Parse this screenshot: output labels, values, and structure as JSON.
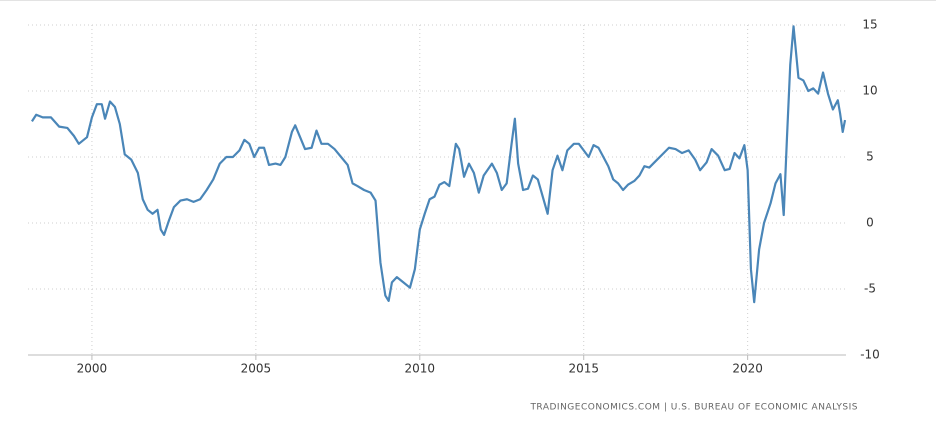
{
  "chart_data": {
    "type": "line",
    "source": "TRADINGECONOMICS.COM | U.S. BUREAU OF ECONOMIC ANALYSIS",
    "xlim": [
      1998.05,
      2023.0
    ],
    "ylim": [
      -10,
      15
    ],
    "xticks": [
      2000,
      2005,
      2010,
      2015,
      2020
    ],
    "yticks": [
      -10,
      -5,
      0,
      5,
      10,
      15
    ],
    "grid": true,
    "series": [
      {
        "color": "#4a86b8",
        "x": [
          1998.17,
          1998.3,
          1998.5,
          1998.75,
          1999.0,
          1999.25,
          1999.45,
          1999.6,
          1999.85,
          2000.0,
          2000.15,
          2000.3,
          2000.4,
          2000.55,
          2000.7,
          2000.85,
          2001.0,
          2001.2,
          2001.4,
          2001.55,
          2001.7,
          2001.85,
          2002.0,
          2002.1,
          2002.2,
          2002.35,
          2002.5,
          2002.7,
          2002.9,
          2003.1,
          2003.3,
          2003.5,
          2003.7,
          2003.9,
          2004.1,
          2004.3,
          2004.5,
          2004.65,
          2004.8,
          2004.95,
          2005.1,
          2005.25,
          2005.4,
          2005.6,
          2005.75,
          2005.9,
          2006.1,
          2006.2,
          2006.35,
          2006.5,
          2006.7,
          2006.85,
          2007.0,
          2007.2,
          2007.4,
          2007.6,
          2007.8,
          2007.95,
          2008.1,
          2008.3,
          2008.5,
          2008.65,
          2008.8,
          2008.95,
          2009.05,
          2009.15,
          2009.3,
          2009.5,
          2009.7,
          2009.85,
          2010.0,
          2010.15,
          2010.3,
          2010.45,
          2010.6,
          2010.75,
          2010.9,
          2011.1,
          2011.2,
          2011.35,
          2011.5,
          2011.65,
          2011.8,
          2011.95,
          2012.2,
          2012.35,
          2012.5,
          2012.65,
          2012.8,
          2012.9,
          2013.0,
          2013.15,
          2013.3,
          2013.45,
          2013.6,
          2013.75,
          2013.9,
          2014.05,
          2014.2,
          2014.35,
          2014.5,
          2014.7,
          2014.85,
          2015.0,
          2015.15,
          2015.3,
          2015.45,
          2015.6,
          2015.75,
          2015.9,
          2016.05,
          2016.2,
          2016.35,
          2016.55,
          2016.7,
          2016.85,
          2017.0,
          2017.2,
          2017.4,
          2017.6,
          2017.8,
          2018.0,
          2018.2,
          2018.4,
          2018.55,
          2018.75,
          2018.9,
          2019.1,
          2019.3,
          2019.45,
          2019.6,
          2019.75,
          2019.9,
          2020.0,
          2020.1,
          2020.2,
          2020.35,
          2020.5,
          2020.7,
          2020.85,
          2021.0,
          2021.1,
          2021.2,
          2021.3,
          2021.4,
          2021.55,
          2021.7,
          2021.85,
          2022.0,
          2022.15,
          2022.3,
          2022.45,
          2022.6,
          2022.75,
          2022.82,
          2022.9,
          2022.97
        ],
        "values": [
          7.7,
          8.2,
          8.0,
          8.0,
          7.3,
          7.2,
          6.6,
          6.0,
          6.5,
          8.0,
          9.0,
          9.0,
          7.9,
          9.2,
          8.8,
          7.5,
          5.2,
          4.8,
          3.8,
          1.8,
          1.0,
          0.7,
          1.0,
          -0.5,
          -0.9,
          0.2,
          1.2,
          1.7,
          1.8,
          1.6,
          1.8,
          2.5,
          3.3,
          4.5,
          5.0,
          5.0,
          5.5,
          6.3,
          6.0,
          5.0,
          5.7,
          5.7,
          4.4,
          4.5,
          4.4,
          5.0,
          6.9,
          7.4,
          6.5,
          5.6,
          5.7,
          7.0,
          6.0,
          6.0,
          5.6,
          5.0,
          4.4,
          3.0,
          2.8,
          2.5,
          2.3,
          1.7,
          -3.0,
          -5.5,
          -5.9,
          -4.5,
          -4.1,
          -4.5,
          -4.9,
          -3.5,
          -0.5,
          0.7,
          1.8,
          2.0,
          2.9,
          3.1,
          2.8,
          6.0,
          5.6,
          3.5,
          4.5,
          3.8,
          2.3,
          3.6,
          4.5,
          3.8,
          2.5,
          3.0,
          6.0,
          7.9,
          4.5,
          2.5,
          2.6,
          3.6,
          3.3,
          2.0,
          0.7,
          4.0,
          5.1,
          4.0,
          5.5,
          6.0,
          6.0,
          5.5,
          5.0,
          5.9,
          5.7,
          5.0,
          4.3,
          3.3,
          3.0,
          2.5,
          2.9,
          3.2,
          3.6,
          4.3,
          4.2,
          4.7,
          5.2,
          5.7,
          5.6,
          5.3,
          5.5,
          4.8,
          4.0,
          4.6,
          5.6,
          5.1,
          4.0,
          4.1,
          5.3,
          4.9,
          5.9,
          4.0,
          -3.5,
          -6.0,
          -2.0,
          0.0,
          1.5,
          3.0,
          3.7,
          0.6,
          6.5,
          12.0,
          14.9,
          11.0,
          10.8,
          10.0,
          10.2,
          9.8,
          11.4,
          9.8,
          8.6,
          9.3,
          8.3,
          6.9,
          7.8
        ]
      }
    ]
  }
}
